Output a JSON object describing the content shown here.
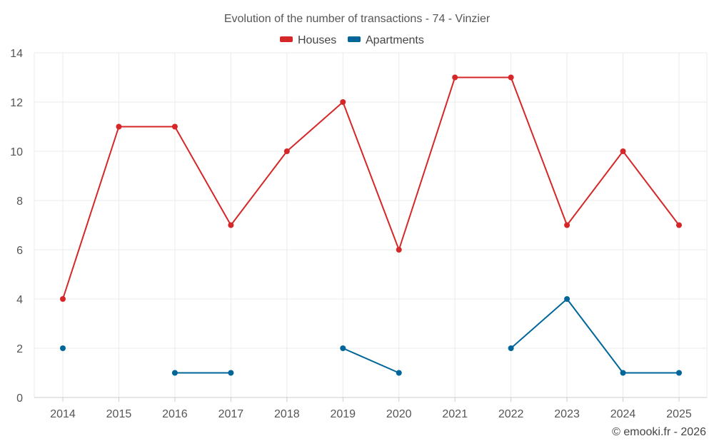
{
  "chart_data": {
    "type": "line",
    "title": "Evolution of the number of transactions - 74 - Vinzier",
    "categories": [
      "2014",
      "2015",
      "2016",
      "2017",
      "2018",
      "2019",
      "2020",
      "2021",
      "2022",
      "2023",
      "2024",
      "2025"
    ],
    "ylim": [
      0,
      14
    ],
    "yticks": [
      0,
      2,
      4,
      6,
      8,
      10,
      12,
      14
    ],
    "grid": true,
    "legend_position": "top-center",
    "series": [
      {
        "name": "Houses",
        "color": "#d62728",
        "values": [
          4,
          11,
          11,
          7,
          10,
          12,
          6,
          13,
          13,
          7,
          10,
          7
        ]
      },
      {
        "name": "Apartments",
        "color": "#006699",
        "values": [
          2,
          null,
          1,
          1,
          null,
          2,
          1,
          null,
          2,
          4,
          1,
          1
        ]
      }
    ],
    "credit": "© emooki.fr - 2026"
  }
}
